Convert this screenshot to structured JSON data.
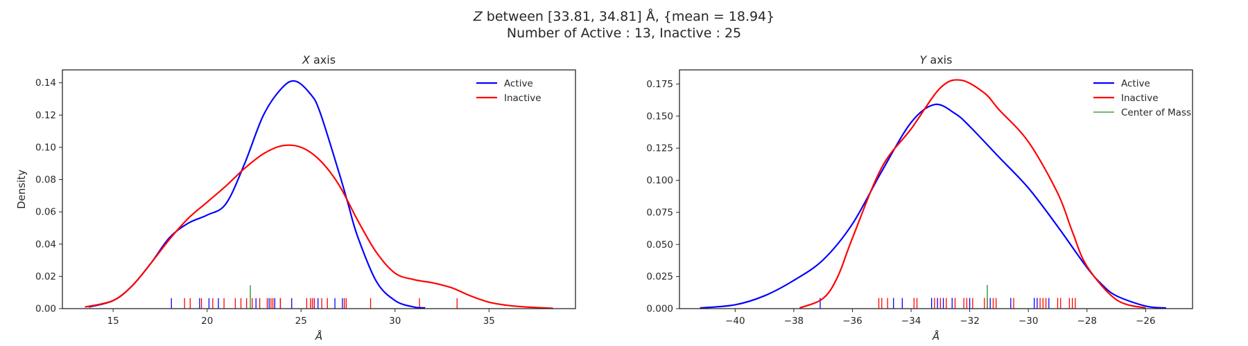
{
  "suptitle": {
    "line1_prefix": "Z",
    "line1_rest": " between [33.81, 34.81] Å, {mean = 18.94}",
    "line2": "Number of Active : 13, Inactive : 25"
  },
  "colors": {
    "active": "#0000ff",
    "inactive": "#ff0000",
    "center_of_mass": "#228b22"
  },
  "chart_data": [
    {
      "type": "line",
      "title_var": "X",
      "title_rest": " axis",
      "xlabel": "Å",
      "ylabel": "Density",
      "xlim": [
        12.3,
        39.6
      ],
      "ylim": [
        0,
        0.148
      ],
      "xticks": [
        15,
        20,
        25,
        30,
        35
      ],
      "yticks": [
        0.0,
        0.02,
        0.04,
        0.06,
        0.08,
        0.1,
        0.12,
        0.14
      ],
      "ytick_labels": [
        "0.00",
        "0.02",
        "0.04",
        "0.06",
        "0.08",
        "0.10",
        "0.12",
        "0.14"
      ],
      "grid": false,
      "legend": {
        "position": "top-right",
        "entries": [
          "Active",
          "Inactive"
        ]
      },
      "series": [
        {
          "name": "Active",
          "color_key": "active",
          "x": [
            13.7,
            15,
            16,
            17,
            18,
            19,
            20,
            21,
            22,
            23,
            24,
            24.7,
            25.5,
            26,
            27,
            27.5,
            28,
            29,
            30,
            31,
            31.6
          ],
          "y": [
            0.001,
            0.005,
            0.014,
            0.028,
            0.044,
            0.053,
            0.058,
            0.065,
            0.09,
            0.12,
            0.137,
            0.141,
            0.133,
            0.122,
            0.085,
            0.065,
            0.045,
            0.017,
            0.005,
            0.001,
            0.0005
          ]
        },
        {
          "name": "Inactive",
          "color_key": "inactive",
          "x": [
            13.5,
            15,
            16,
            17,
            18,
            19,
            20,
            21,
            22,
            23,
            24,
            25,
            26,
            27,
            28,
            29,
            30,
            31,
            32,
            33,
            34,
            35,
            36,
            37,
            38.4
          ],
          "y": [
            0.001,
            0.005,
            0.014,
            0.028,
            0.043,
            0.056,
            0.066,
            0.076,
            0.087,
            0.096,
            0.101,
            0.1,
            0.092,
            0.077,
            0.055,
            0.035,
            0.022,
            0.018,
            0.016,
            0.013,
            0.008,
            0.004,
            0.002,
            0.001,
            0.0002
          ]
        }
      ],
      "rugs": [
        {
          "color_key": "active",
          "height": 0.0065,
          "x": [
            18.1,
            19.6,
            20.1,
            20.6,
            22.6,
            23.3,
            23.6,
            23.9,
            24.5,
            25.7,
            25.9,
            26.8,
            27.2
          ]
        },
        {
          "color_key": "inactive",
          "height": 0.0065,
          "x": [
            18.8,
            19.1,
            19.7,
            20.3,
            20.9,
            21.5,
            21.8,
            22.1,
            22.4,
            22.8,
            23.2,
            23.4,
            23.5,
            23.9,
            25.3,
            25.5,
            25.6,
            25.7,
            26.1,
            26.4,
            27.3,
            27.4,
            28.7,
            31.3,
            33.3
          ]
        },
        {
          "color_key": "center_of_mass",
          "height": 0.0145,
          "x": [
            22.3
          ]
        }
      ]
    },
    {
      "type": "line",
      "title_var": "Y",
      "title_rest": " axis",
      "xlabel": "Å",
      "ylabel": "",
      "xlim": [
        -41.9,
        -24.4
      ],
      "ylim": [
        0,
        0.186
      ],
      "xticks": [
        -40,
        -38,
        -36,
        -34,
        -32,
        -30,
        -28,
        -26
      ],
      "xtick_labels": [
        "−40",
        "−38",
        "−36",
        "−34",
        "−32",
        "−30",
        "−28",
        "−26"
      ],
      "yticks": [
        0,
        0.025,
        0.05,
        0.075,
        0.1,
        0.125,
        0.15,
        0.175
      ],
      "ytick_labels": [
        "0.000",
        "0.025",
        "0.050",
        "0.075",
        "0.100",
        "0.125",
        "0.150",
        "0.175"
      ],
      "grid": false,
      "legend": {
        "position": "top-right",
        "entries": [
          "Active",
          "Inactive",
          "Center of Mass"
        ]
      },
      "series": [
        {
          "name": "Active",
          "color_key": "active",
          "x": [
            -41.2,
            -40,
            -39,
            -38,
            -37,
            -36,
            -35,
            -34,
            -33.2,
            -32.5,
            -32,
            -31,
            -30,
            -29,
            -28,
            -27.5,
            -27,
            -26,
            -25.3
          ],
          "y": [
            0.0005,
            0.003,
            0.01,
            0.022,
            0.038,
            0.066,
            0.107,
            0.145,
            0.159,
            0.152,
            0.142,
            0.118,
            0.094,
            0.064,
            0.032,
            0.019,
            0.01,
            0.002,
            0.0005
          ]
        },
        {
          "name": "Inactive",
          "color_key": "inactive",
          "x": [
            -37.8,
            -37,
            -36.5,
            -36,
            -35,
            -34,
            -33,
            -32.3,
            -31.5,
            -31,
            -30,
            -29,
            -28.5,
            -28,
            -27,
            -26
          ],
          "y": [
            0.0005,
            0.008,
            0.025,
            0.055,
            0.11,
            0.14,
            0.172,
            0.178,
            0.168,
            0.155,
            0.13,
            0.09,
            0.06,
            0.033,
            0.007,
            0.0005
          ]
        }
      ],
      "rugs": [
        {
          "color_key": "active",
          "height": 0.0083,
          "x": [
            -37.1,
            -34.6,
            -34.3,
            -33.3,
            -33.1,
            -32.9,
            -32.6,
            -32.0,
            -31.3,
            -30.6,
            -29.8,
            -29.7,
            -29.3
          ]
        },
        {
          "color_key": "inactive",
          "height": 0.0083,
          "x": [
            -35.1,
            -35.0,
            -34.8,
            -33.9,
            -33.8,
            -33.2,
            -33.0,
            -32.8,
            -32.5,
            -32.2,
            -32.1,
            -31.9,
            -31.5,
            -31.4,
            -31.2,
            -31.1,
            -30.5,
            -29.6,
            -29.5,
            -29.4,
            -29.0,
            -28.9,
            -28.6,
            -28.5,
            -28.4
          ]
        },
        {
          "color_key": "center_of_mass",
          "height": 0.0185,
          "x": [
            -31.4
          ]
        }
      ]
    }
  ]
}
